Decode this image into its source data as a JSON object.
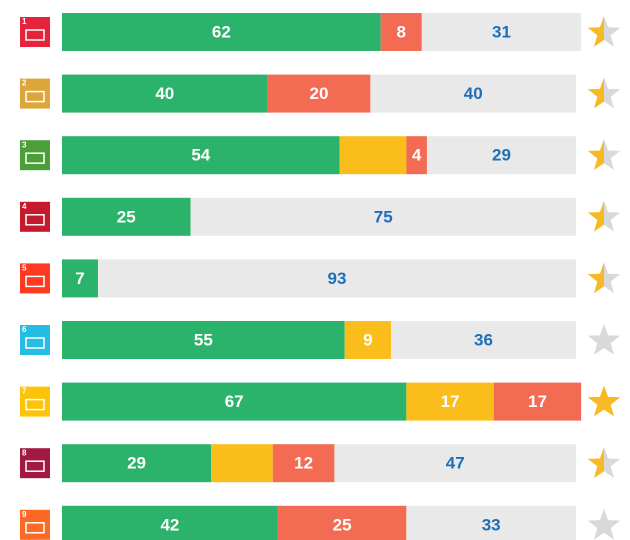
{
  "chart_data": {
    "type": "stacked-bar",
    "categories": [
      "1",
      "2",
      "3",
      "4",
      "5",
      "6",
      "7",
      "8",
      "9"
    ],
    "icon_colors": [
      "#e5243b",
      "#dda63a",
      "#4c9f38",
      "#c5192d",
      "#ff3a21",
      "#26bde2",
      "#fcc30b",
      "#a21942",
      "#fd6925"
    ],
    "xlim": [
      0,
      100
    ],
    "series": [
      {
        "name": "green",
        "color": "#2bb36b",
        "label_color": "#ffffff",
        "values": [
          62,
          40,
          54,
          25,
          7,
          55,
          67,
          29,
          42
        ],
        "value_labels": [
          "62",
          "40",
          "54",
          "25",
          "7",
          "55",
          "67",
          "29",
          "42"
        ]
      },
      {
        "name": "yellow",
        "color": "#fbbd1c",
        "label_color": "#ffffff",
        "values": [
          null,
          null,
          13,
          null,
          null,
          9,
          17,
          12,
          null
        ],
        "value_labels": [
          null,
          null,
          null,
          null,
          null,
          "9",
          "17",
          null,
          null
        ]
      },
      {
        "name": "red",
        "color": "#f26b52",
        "label_color": "#ffffff",
        "values": [
          8,
          20,
          4,
          null,
          null,
          null,
          17,
          12,
          25
        ],
        "value_labels": [
          "8",
          "20",
          "4",
          null,
          null,
          null,
          "17",
          "12",
          "25"
        ]
      },
      {
        "name": "grey",
        "color": "#e9e9e9",
        "label_color": "#1e6fb8",
        "values": [
          31,
          40,
          29,
          75,
          93,
          36,
          null,
          47,
          33
        ],
        "value_labels": [
          "31",
          "40",
          "29",
          "75",
          "93",
          "36",
          null,
          "47",
          "33"
        ]
      }
    ],
    "ratings": [
      0.5,
      0.5,
      0.5,
      0.5,
      0.5,
      0,
      1,
      0.5,
      0
    ],
    "star_color": "#f7b924",
    "star_empty_color": "#d9d9d9"
  }
}
